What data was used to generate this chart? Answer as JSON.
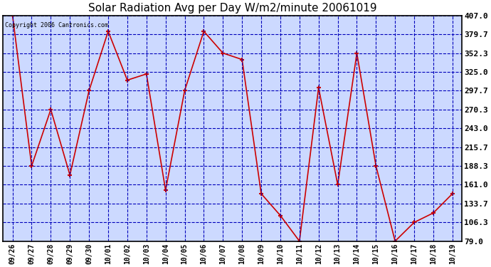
{
  "title": "Solar Radiation Avg per Day W/m2/minute 20061019",
  "copyright": "Copyright 2006 Cantronics.com",
  "dates": [
    "09/26",
    "09/27",
    "09/28",
    "09/29",
    "09/30",
    "10/01",
    "10/02",
    "10/03",
    "10/04",
    "10/05",
    "10/06",
    "10/07",
    "10/08",
    "10/09",
    "10/10",
    "10/11",
    "10/12",
    "10/13",
    "10/14",
    "10/15",
    "10/16",
    "10/17",
    "10/18",
    "10/19"
  ],
  "values": [
    407.0,
    188.3,
    270.3,
    175.0,
    297.7,
    384.0,
    313.0,
    322.0,
    153.0,
    298.0,
    384.0,
    352.3,
    343.0,
    148.0,
    116.3,
    79.0,
    302.0,
    161.0,
    352.3,
    188.3,
    79.0,
    106.3,
    120.0,
    148.0
  ],
  "ylim": [
    79.0,
    407.0
  ],
  "yticks": [
    79.0,
    106.3,
    133.7,
    161.0,
    188.3,
    215.7,
    243.0,
    270.3,
    297.7,
    325.0,
    352.3,
    379.7,
    407.0
  ],
  "line_color": "#cc0000",
  "marker": "+",
  "marker_color": "#cc0000",
  "background_color": "#ffffff",
  "plot_bg_color": "#ccd9ff",
  "grid_color": "#0000bb",
  "title_fontsize": 11,
  "copyright_fontsize": 6,
  "tick_fontsize": 7,
  "ytick_fontsize": 8
}
